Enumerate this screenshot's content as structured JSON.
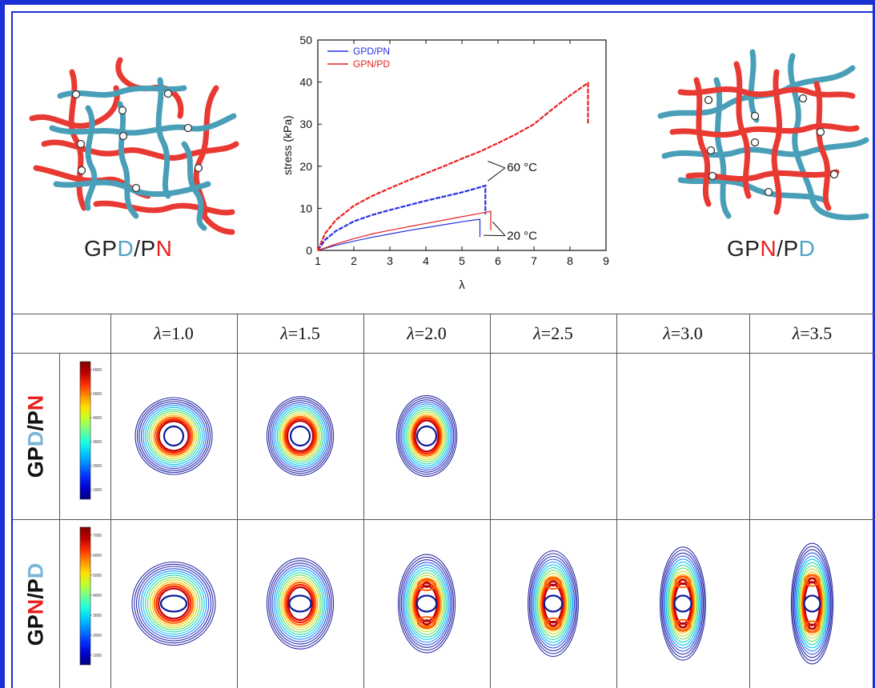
{
  "left_network": {
    "label_parts": [
      {
        "text": "GP",
        "color": "#222222"
      },
      {
        "text": "D",
        "color": "#4fa3c9"
      },
      {
        "text": "/P",
        "color": "#222222"
      },
      {
        "text": "N",
        "color": "#e82020"
      }
    ]
  },
  "right_network": {
    "label_parts": [
      {
        "text": "GP",
        "color": "#222222"
      },
      {
        "text": "N",
        "color": "#e82020"
      },
      {
        "text": "/P",
        "color": "#222222"
      },
      {
        "text": "D",
        "color": "#4fa3c9"
      }
    ]
  },
  "colors": {
    "frame": "#1a2fd4",
    "blue_chain": "#4a9fb8",
    "red_chain": "#e83a32",
    "gpd_pn_curve": "#2530e0",
    "gpn_pd_curve": "#e82020"
  },
  "chart_data": {
    "type": "line",
    "xlabel": "λ",
    "ylabel": "stress (kPa)",
    "xlim": [
      1,
      9
    ],
    "ylim": [
      0,
      50
    ],
    "xticks": [
      "1",
      "2",
      "3",
      "4",
      "5",
      "6",
      "7",
      "8",
      "9"
    ],
    "yticks": [
      "0",
      "10",
      "20",
      "30",
      "40",
      "50"
    ],
    "legend": "top-left",
    "annotations": [
      "60 °C",
      "20 °C"
    ],
    "series": [
      {
        "name": "GPD/PN",
        "condition": "60 °C",
        "x": [
          1.0,
          1.2,
          1.5,
          2.0,
          2.5,
          3.0,
          3.5,
          4.0,
          4.5,
          5.0,
          5.5,
          5.65,
          5.65
        ],
        "values": [
          0.0,
          2.5,
          4.6,
          6.9,
          8.4,
          9.6,
          10.7,
          11.8,
          12.8,
          13.8,
          15.0,
          15.4,
          8.6
        ]
      },
      {
        "name": "GPD/PN",
        "condition": "20 °C",
        "x": [
          1.0,
          1.5,
          2.0,
          2.5,
          3.0,
          3.5,
          4.0,
          4.5,
          5.0,
          5.4,
          5.5,
          5.5
        ],
        "values": [
          0.0,
          1.2,
          2.2,
          3.1,
          3.9,
          4.7,
          5.4,
          6.1,
          6.8,
          7.3,
          7.4,
          3.2
        ]
      },
      {
        "name": "GPN/PD",
        "condition": "60 °C",
        "x": [
          1.0,
          1.2,
          1.5,
          2.0,
          2.5,
          3.0,
          3.5,
          4.0,
          4.5,
          5.0,
          5.5,
          6.0,
          6.5,
          7.0,
          7.5,
          8.0,
          8.5,
          8.5
        ],
        "values": [
          0.0,
          4.0,
          7.2,
          10.6,
          12.9,
          14.8,
          16.6,
          18.3,
          20.0,
          21.8,
          23.5,
          25.5,
          27.6,
          30.0,
          33.5,
          36.8,
          39.8,
          30.0
        ]
      },
      {
        "name": "GPN/PD",
        "condition": "20 °C",
        "x": [
          1.0,
          1.5,
          2.0,
          2.5,
          3.0,
          3.5,
          4.0,
          4.5,
          5.0,
          5.5,
          5.8,
          5.8
        ],
        "values": [
          0.0,
          1.5,
          2.8,
          3.9,
          4.8,
          5.6,
          6.4,
          7.2,
          8.0,
          8.8,
          9.3,
          4.8
        ]
      }
    ]
  },
  "table": {
    "column_headers": [
      {
        "prefix": "λ",
        "suffix": "=1.0"
      },
      {
        "prefix": "λ",
        "suffix": "=1.5"
      },
      {
        "prefix": "λ",
        "suffix": "=2.0"
      },
      {
        "prefix": "λ",
        "suffix": "=2.5"
      },
      {
        "prefix": "λ",
        "suffix": "=3.0"
      },
      {
        "prefix": "λ",
        "suffix": "=3.5"
      }
    ],
    "rows": [
      {
        "label_parts": [
          {
            "text": "GP",
            "color": "#111111"
          },
          {
            "text": "D",
            "color": "#7ab4d8"
          },
          {
            "text": "/P",
            "color": "#111111"
          },
          {
            "text": "N",
            "color": "#e82020"
          }
        ],
        "colorbar_ticks": [
          "6000",
          "5000",
          "4000",
          "3000",
          "2000",
          "1000"
        ],
        "patterns_present": [
          true,
          true,
          true,
          false,
          false,
          false
        ]
      },
      {
        "label_parts": [
          {
            "text": "GP",
            "color": "#111111"
          },
          {
            "text": "N",
            "color": "#e82020"
          },
          {
            "text": "/P",
            "color": "#111111"
          },
          {
            "text": "D",
            "color": "#7ab4d8"
          }
        ],
        "colorbar_ticks": [
          "7000",
          "6000",
          "5000",
          "4000",
          "3000",
          "2000",
          "1000"
        ],
        "patterns_present": [
          true,
          true,
          true,
          true,
          true,
          true
        ]
      }
    ]
  }
}
